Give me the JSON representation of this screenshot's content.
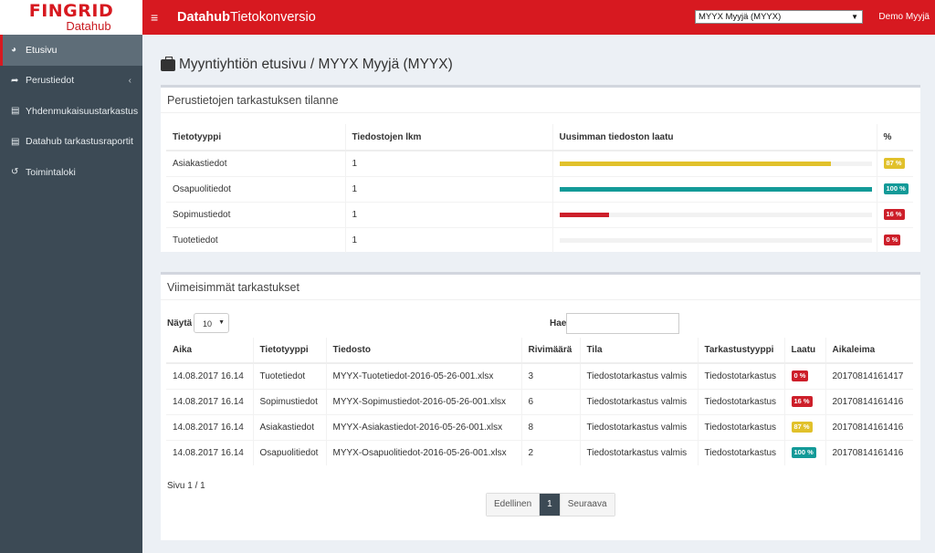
{
  "brand": {
    "name": "FINGRID",
    "sub": "Datahub"
  },
  "header": {
    "menu_icon": "hamburger-icon",
    "title_bold": "Datahub",
    "title_rest": "Tietokonversio",
    "company_selected": "MYYX Myyjä (MYYX)",
    "user": "Demo Myyjä"
  },
  "sidebar": {
    "items": [
      {
        "label": "Etusivu",
        "icon": "dashboard-icon"
      },
      {
        "label": "Perustiedot",
        "icon": "share-icon"
      },
      {
        "label": "Yhdenmukaisuustarkastus",
        "icon": "file-excel-icon"
      },
      {
        "label": "Datahub tarkastusraportit",
        "icon": "file-excel-icon"
      },
      {
        "label": "Toimintaloki",
        "icon": "history-icon"
      }
    ]
  },
  "page": {
    "title": "Myyntiyhtiön etusivu / MYYX Myyjä (MYYX)"
  },
  "status_box": {
    "title": "Perustietojen tarkastuksen tilanne",
    "headers": [
      "Tietotyyppi",
      "Tiedostojen lkm",
      "Uusimman tiedoston laatu",
      "%"
    ],
    "rows": [
      {
        "type": "Asiakastiedot",
        "count": "1",
        "quality": 0.87,
        "pct": "87 %",
        "color": "#e1c12b"
      },
      {
        "type": "Osapuolitiedot",
        "count": "1",
        "quality": 1.0,
        "pct": "100 %",
        "color": "#139a98"
      },
      {
        "type": "Sopimustiedot",
        "count": "1",
        "quality": 0.16,
        "pct": "16 %",
        "color": "#cd1f2a"
      },
      {
        "type": "Tuotetiedot",
        "count": "1",
        "quality": 0.0,
        "pct": "0 %",
        "color": "#cd1f2a"
      }
    ]
  },
  "recent_box": {
    "title": "Viimeisimmät tarkastukset",
    "show_label": "Näytä",
    "show_value": "10",
    "search_label": "Hae",
    "headers": [
      "Aika",
      "Tietotyyppi",
      "Tiedosto",
      "Rivimäärä",
      "Tila",
      "Tarkastustyyppi",
      "Laatu",
      "Aikaleima"
    ],
    "rows": [
      {
        "time": "14.08.2017 16.14",
        "type": "Tuotetiedot",
        "file": "MYYX-Tuotetiedot-2016-05-26-001.xlsx",
        "rows": "3",
        "state": "Tiedostotarkastus valmis",
        "check": "Tiedostotarkastus",
        "quality": "0 %",
        "color": "#cd1f2a",
        "stamp": "20170814161417"
      },
      {
        "time": "14.08.2017 16.14",
        "type": "Sopimustiedot",
        "file": "MYYX-Sopimustiedot-2016-05-26-001.xlsx",
        "rows": "6",
        "state": "Tiedostotarkastus valmis",
        "check": "Tiedostotarkastus",
        "quality": "16 %",
        "color": "#cd1f2a",
        "stamp": "20170814161416"
      },
      {
        "time": "14.08.2017 16.14",
        "type": "Asiakastiedot",
        "file": "MYYX-Asiakastiedot-2016-05-26-001.xlsx",
        "rows": "8",
        "state": "Tiedostotarkastus valmis",
        "check": "Tiedostotarkastus",
        "quality": "87 %",
        "color": "#e1c12b",
        "stamp": "20170814161416"
      },
      {
        "time": "14.08.2017 16.14",
        "type": "Osapuolitiedot",
        "file": "MYYX-Osapuolitiedot-2016-05-26-001.xlsx",
        "rows": "2",
        "state": "Tiedostotarkastus valmis",
        "check": "Tiedostotarkastus",
        "quality": "100 %",
        "color": "#139a98",
        "stamp": "20170814161416"
      }
    ],
    "page_info": "Sivu 1 / 1",
    "pagination": {
      "prev": "Edellinen",
      "current": "1",
      "next": "Seuraava"
    }
  }
}
